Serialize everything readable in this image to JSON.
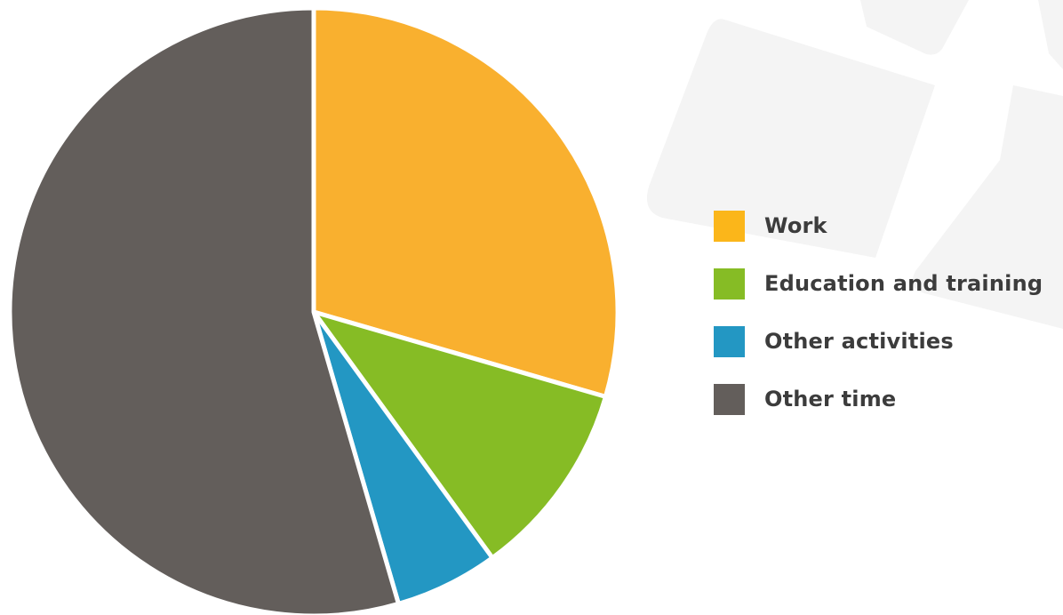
{
  "chart_data": {
    "type": "pie",
    "title": "",
    "categories": [
      "Work",
      "Education and training",
      "Other activities",
      "Other time"
    ],
    "values": [
      29.5,
      10.5,
      5.5,
      54.5
    ],
    "colors": [
      "#f9b02f",
      "#86bc25",
      "#2397c3",
      "#635e5b"
    ],
    "start_angle_deg": 0,
    "direction": "clockwise",
    "legend_position": "right"
  },
  "legend": {
    "items": [
      {
        "label": "Work",
        "color": "#fbb61a"
      },
      {
        "label": "Education and training",
        "color": "#86bc25"
      },
      {
        "label": "Other activities",
        "color": "#2397c3"
      },
      {
        "label": "Other time",
        "color": "#635e5b"
      }
    ]
  }
}
